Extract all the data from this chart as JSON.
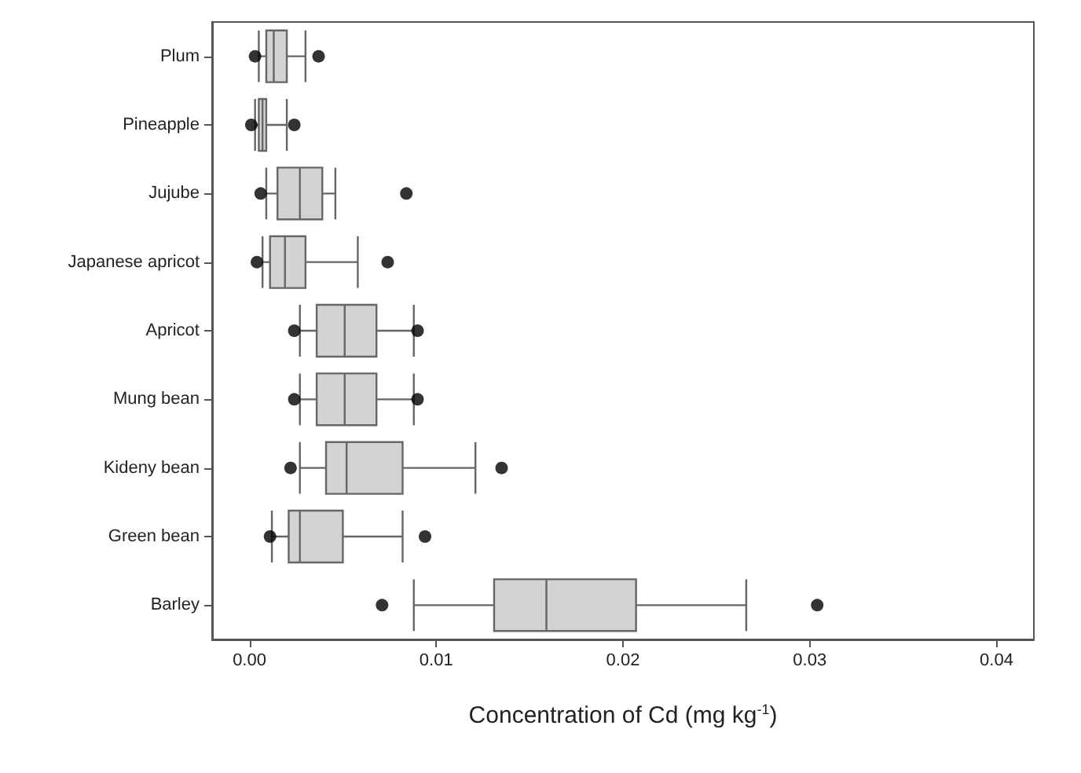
{
  "chart_data": {
    "type": "box",
    "orientation": "horizontal",
    "color": "#d3d3d3",
    "categories": [
      "Plum",
      "Pineapple",
      "Jujube",
      "Japanese apricot",
      "Apricot",
      "Mung bean",
      "Kideny bean",
      "Green bean",
      "Barley"
    ],
    "boxes": [
      {
        "low": 0.0005,
        "q1": 0.0009,
        "median": 0.0013,
        "q3": 0.002,
        "high": 0.003,
        "outliers": [
          0.0003,
          0.0037
        ]
      },
      {
        "low": 0.0003,
        "q1": 0.0005,
        "median": 0.0007,
        "q3": 0.0009,
        "high": 0.002,
        "outliers": [
          0.0001,
          0.0024
        ]
      },
      {
        "low": 0.0009,
        "q1": 0.0015,
        "median": 0.0027,
        "q3": 0.0039,
        "high": 0.0046,
        "outliers": [
          0.0006,
          0.0084
        ]
      },
      {
        "low": 0.0007,
        "q1": 0.0011,
        "median": 0.0019,
        "q3": 0.003,
        "high": 0.0058,
        "outliers": [
          0.0004,
          0.0074
        ]
      },
      {
        "low": 0.0027,
        "q1": 0.0036,
        "median": 0.0051,
        "q3": 0.0068,
        "high": 0.0088,
        "outliers": [
          0.0024,
          0.009
        ]
      },
      {
        "low": 0.0027,
        "q1": 0.0036,
        "median": 0.0051,
        "q3": 0.0068,
        "high": 0.0088,
        "outliers": [
          0.0024,
          0.009
        ]
      },
      {
        "low": 0.0027,
        "q1": 0.0041,
        "median": 0.0052,
        "q3": 0.0082,
        "high": 0.0121,
        "outliers": [
          0.0022,
          0.0135
        ]
      },
      {
        "low": 0.0012,
        "q1": 0.0021,
        "median": 0.0027,
        "q3": 0.005,
        "high": 0.0082,
        "outliers": [
          0.0011,
          0.0094
        ]
      },
      {
        "low": 0.0088,
        "q1": 0.0131,
        "median": 0.0159,
        "q3": 0.0207,
        "high": 0.0266,
        "outliers": [
          0.0071,
          0.0304
        ]
      }
    ],
    "xlim": [
      -0.002,
      0.042
    ],
    "xticks": [
      {
        "value": 0,
        "label": "0.00"
      },
      0.01,
      0.02,
      0.03,
      0.04
    ],
    "xlabel": "Concentration of Cd (mg kg$^{-1}$)",
    "grid": false
  }
}
